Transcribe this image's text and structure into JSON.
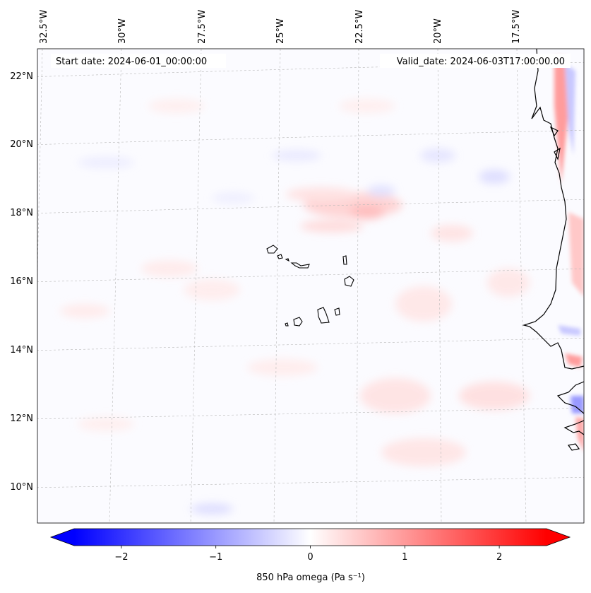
{
  "map": {
    "start_date": "Start date: 2024-06-01_00:00:00",
    "valid_date": "Valid_date: 2024-06-03T17:00:00.00",
    "lon_labels": [
      "32.5°W",
      "30°W",
      "27.5°W",
      "25°W",
      "22.5°W",
      "20°W",
      "17.5°W"
    ],
    "lat_labels": [
      "22°N",
      "20°N",
      "18°N",
      "16°N",
      "14°N",
      "12°N",
      "10°N"
    ],
    "region": "Cape Verde Islands and West African coast",
    "field": "850 hPa omega"
  },
  "colorbar": {
    "label": "850 hPa omega (Pa s⁻¹)",
    "ticks": [
      "−2",
      "−1",
      "0",
      "1",
      "2"
    ],
    "tick_values": [
      -2,
      -1,
      0,
      1,
      2
    ],
    "min": -2.5,
    "max": 2.5,
    "colors": {
      "negative": "#0000ff",
      "zero": "#ffffff",
      "positive": "#ff0000"
    }
  }
}
